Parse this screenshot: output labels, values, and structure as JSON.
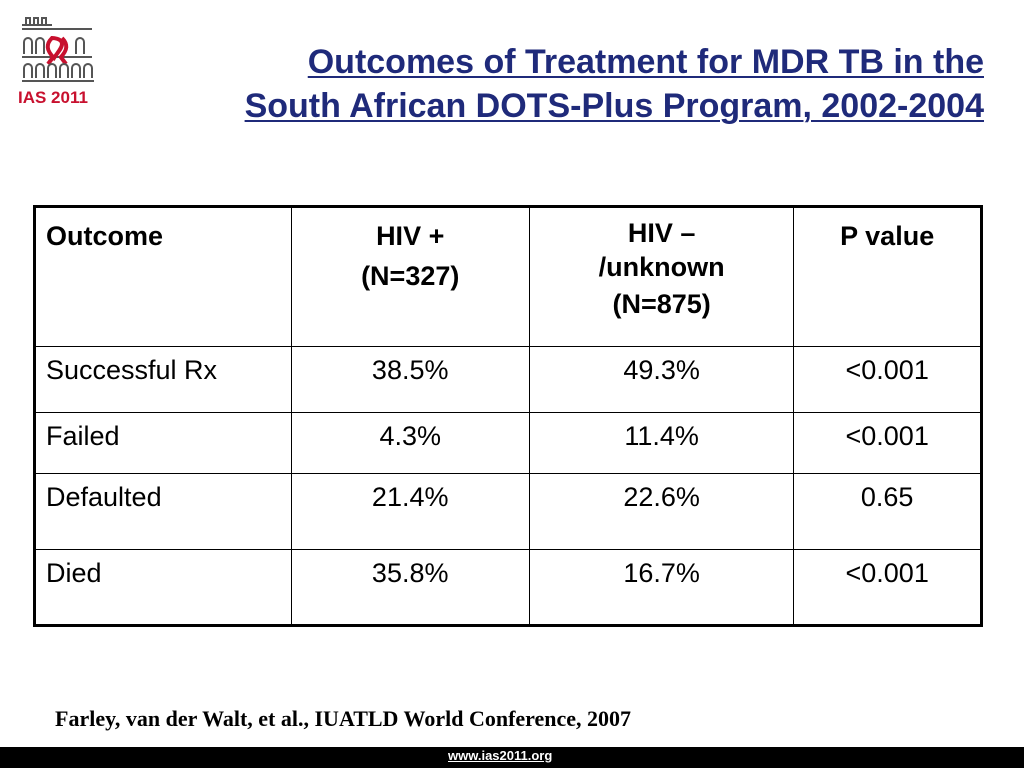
{
  "logo": {
    "text": "IAS 2011",
    "icon": "ias-2011-colosseum-ribbon-logo",
    "brand_color": "#c8102e"
  },
  "title": {
    "line1": "Outcomes of Treatment for MDR TB in the",
    "line2": "South African DOTS-Plus Program, 2002-2004",
    "color": "#1f2a7a"
  },
  "table": {
    "headers": [
      {
        "lines": [
          "Outcome"
        ]
      },
      {
        "lines": [
          "HIV +",
          "(N=327)"
        ]
      },
      {
        "lines": [
          "HIV –",
          "/unknown",
          "(N=875)"
        ]
      },
      {
        "lines": [
          "P value"
        ]
      }
    ],
    "rows": [
      [
        "Successful Rx",
        "38.5%",
        "49.3%",
        "<0.001"
      ],
      [
        "Failed",
        "4.3%",
        "11.4%",
        "<0.001"
      ],
      [
        "Defaulted",
        "21.4%",
        "22.6%",
        "0.65"
      ],
      [
        "Died",
        "35.8%",
        "16.7%",
        "<0.001"
      ]
    ]
  },
  "citation": "Farley, van der Walt, et al., IUATLD World Conference, 2007",
  "footer": {
    "link": "www.ias2011.org",
    "bar_color": "#000000"
  }
}
